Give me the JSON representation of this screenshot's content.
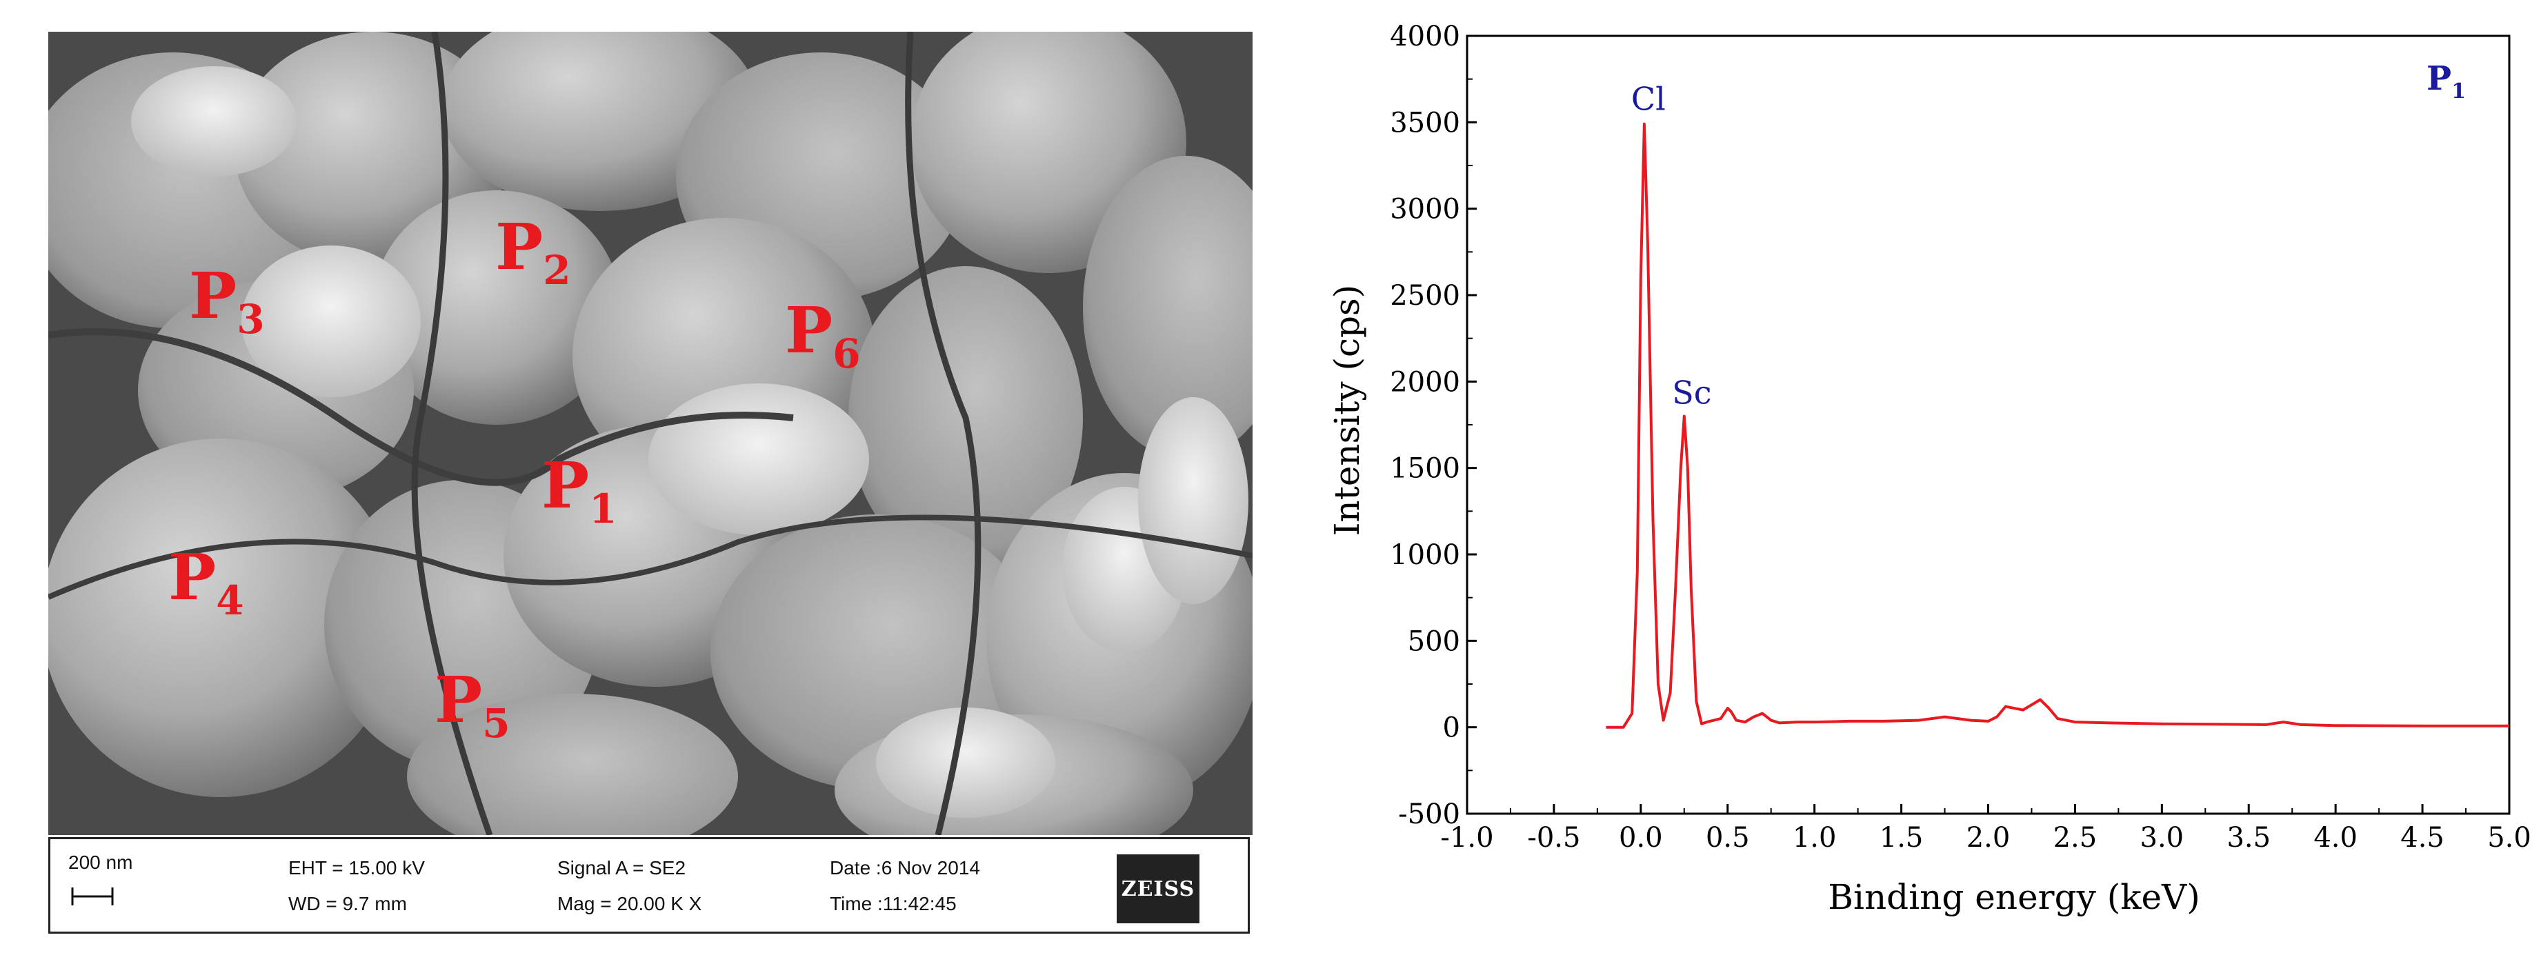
{
  "sem": {
    "labels": [
      {
        "main": "P",
        "sub": "1"
      },
      {
        "main": "P",
        "sub": "2"
      },
      {
        "main": "P",
        "sub": "3"
      },
      {
        "main": "P",
        "sub": "4"
      },
      {
        "main": "P",
        "sub": "5"
      },
      {
        "main": "P",
        "sub": "6"
      }
    ],
    "databar": {
      "scale": "200 nm",
      "eht": "EHT = 15.00 kV",
      "wd": "WD = 9.7 mm",
      "signal": "Signal A = SE2",
      "mag": "Mag = 20.00 K X",
      "date": "Date :6 Nov 2014",
      "time": "Time :11:42:45",
      "logo": "ZEISS"
    }
  },
  "chart_data": {
    "type": "line",
    "xlabel": "Binding energy (keV)",
    "ylabel": "Intensity (cps)",
    "xlim": [
      -1.0,
      5.0
    ],
    "ylim": [
      -500,
      4000
    ],
    "x_ticks": [
      "-1.0",
      "-0.5",
      "0.0",
      "0.5",
      "1.0",
      "1.5",
      "2.0",
      "2.5",
      "3.0",
      "3.5",
      "4.0",
      "4.5",
      "5.0"
    ],
    "y_ticks": [
      "-500",
      "0",
      "500",
      "1000",
      "1500",
      "2000",
      "2500",
      "3000",
      "3500",
      "4000"
    ],
    "panel_label": {
      "main": "P",
      "sub": "1"
    },
    "line_color": "#e8191f",
    "annotation_color": "#1a1a9c",
    "annotations": [
      {
        "text": "Cl",
        "x": 0.02,
        "y": 3500
      },
      {
        "text": "Sc",
        "x": 0.27,
        "y": 1800
      }
    ],
    "series": [
      {
        "x": [
          -0.2,
          -0.1,
          -0.05,
          -0.02,
          0.0,
          0.02,
          0.04,
          0.07,
          0.1,
          0.13,
          0.17,
          0.2,
          0.23,
          0.25,
          0.27,
          0.29,
          0.32,
          0.35,
          0.38,
          0.42,
          0.46,
          0.5,
          0.52,
          0.55,
          0.6,
          0.65,
          0.7,
          0.75,
          0.8,
          0.9,
          1.0,
          1.2,
          1.4,
          1.6,
          1.75,
          1.9,
          2.0,
          2.05,
          2.1,
          2.15,
          2.2,
          2.25,
          2.3,
          2.35,
          2.4,
          2.5,
          2.7,
          3.0,
          3.3,
          3.6,
          3.7,
          3.8,
          4.0,
          4.5,
          5.0
        ],
        "y": [
          0,
          0,
          80,
          900,
          2600,
          3490,
          2800,
          1200,
          250,
          40,
          200,
          800,
          1500,
          1800,
          1500,
          800,
          150,
          20,
          30,
          40,
          50,
          110,
          90,
          40,
          30,
          60,
          80,
          40,
          25,
          30,
          30,
          35,
          35,
          40,
          60,
          40,
          35,
          60,
          120,
          110,
          100,
          130,
          160,
          110,
          50,
          30,
          25,
          20,
          18,
          15,
          30,
          15,
          10,
          8,
          8
        ]
      }
    ]
  }
}
